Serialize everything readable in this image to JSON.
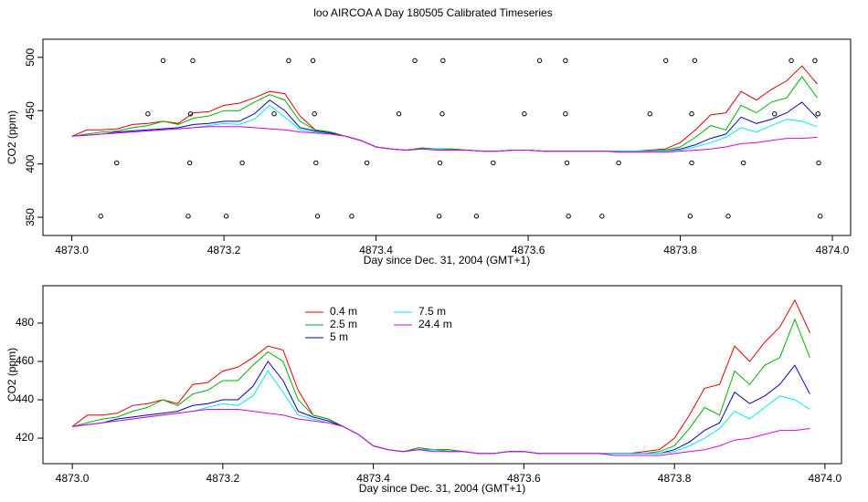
{
  "title": "loo AIRCOA A  Day 180505  Calibrated Timeseries",
  "chart_data": [
    {
      "type": "line",
      "xlabel": "Day since Dec. 31, 2004 (GMT+1)",
      "ylabel": "CO2 (ppm)",
      "xlim": [
        4872.962,
        4874.024
      ],
      "ylim": [
        332.9,
        517
      ],
      "xticks": [
        {
          "value": 4873,
          "label": "4873.0"
        },
        4873.2,
        4873.4,
        4873.6,
        4873.8,
        {
          "value": 4874,
          "label": "4874.0"
        }
      ],
      "yticks": [
        350,
        400,
        450,
        500
      ],
      "x": [
        4873.0,
        4873.02,
        4873.04,
        4873.06,
        4873.08,
        4873.1,
        4873.12,
        4873.14,
        4873.16,
        4873.18,
        4873.2,
        4873.22,
        4873.24,
        4873.26,
        4873.28,
        4873.3,
        4873.32,
        4873.34,
        4873.36,
        4873.38,
        4873.4,
        4873.42,
        4873.44,
        4873.46,
        4873.48,
        4873.5,
        4873.52,
        4873.54,
        4873.56,
        4873.58,
        4873.6,
        4873.62,
        4873.64,
        4873.66,
        4873.68,
        4873.7,
        4873.72,
        4873.74,
        4873.76,
        4873.78,
        4873.8,
        4873.82,
        4873.84,
        4873.86,
        4873.88,
        4873.9,
        4873.92,
        4873.94,
        4873.96,
        4873.98
      ],
      "series": [
        {
          "name": "0.4 m",
          "color": "#e00000",
          "values": [
            426,
            432,
            432,
            433,
            437,
            438,
            440,
            438,
            448,
            449,
            455,
            457,
            462,
            468,
            466,
            445,
            432,
            430,
            426,
            422,
            416,
            414,
            413,
            415,
            414,
            414,
            413,
            412,
            412,
            413,
            413,
            412,
            412,
            412,
            412,
            412,
            412,
            412,
            413,
            414,
            420,
            432,
            446,
            448,
            468,
            460,
            470,
            478,
            492,
            475
          ]
        },
        {
          "name": "2.5 m",
          "color": "#00b000",
          "values": [
            426,
            428,
            430,
            431,
            434,
            436,
            440,
            437,
            443,
            445,
            450,
            450,
            458,
            465,
            460,
            440,
            432,
            430,
            426,
            422,
            416,
            414,
            413,
            415,
            414,
            414,
            413,
            412,
            412,
            413,
            413,
            412,
            412,
            412,
            412,
            412,
            412,
            412,
            412,
            413,
            416,
            425,
            436,
            432,
            455,
            448,
            458,
            462,
            482,
            462
          ]
        },
        {
          "name": "5 m",
          "color": "#0000c0",
          "values": [
            426,
            427,
            428,
            430,
            431,
            432,
            433,
            434,
            437,
            438,
            440,
            440,
            447,
            460,
            450,
            434,
            431,
            429,
            426,
            422,
            416,
            414,
            413,
            414,
            414,
            413,
            413,
            412,
            412,
            413,
            413,
            412,
            412,
            412,
            412,
            412,
            412,
            412,
            412,
            412,
            414,
            418,
            424,
            428,
            444,
            438,
            442,
            448,
            458,
            443
          ]
        },
        {
          "name": "7.5 m",
          "color": "#00e8e8",
          "values": [
            426,
            427,
            428,
            429,
            430,
            431,
            432,
            433,
            434,
            436,
            438,
            437,
            442,
            455,
            444,
            432,
            430,
            428,
            426,
            422,
            416,
            414,
            413,
            414,
            414,
            413,
            413,
            412,
            412,
            413,
            413,
            412,
            412,
            412,
            412,
            412,
            412,
            412,
            412,
            412,
            413,
            416,
            420,
            425,
            434,
            430,
            436,
            442,
            440,
            435
          ]
        },
        {
          "name": "24.4 m",
          "color": "#e000e0",
          "values": [
            426,
            427,
            428,
            429,
            430,
            431,
            432,
            433,
            434,
            435,
            435,
            435,
            434,
            433,
            432,
            430,
            429,
            428,
            426,
            422,
            416,
            414,
            413,
            414,
            413,
            413,
            413,
            412,
            412,
            413,
            413,
            412,
            412,
            412,
            412,
            412,
            411,
            411,
            411,
            411,
            412,
            413,
            414,
            416,
            419,
            420,
            422,
            424,
            424,
            425
          ]
        }
      ],
      "points": {
        "color": "#000000",
        "x": [
          4873.12,
          4873.159,
          4873.285,
          4873.317,
          4873.451,
          4873.488,
          4873.615,
          4873.649,
          4873.781,
          4873.819,
          4873.946,
          4873.977,
          4873.1,
          4873.156,
          4873.266,
          4873.319,
          4873.43,
          4873.487,
          4873.595,
          4873.649,
          4873.76,
          4873.815,
          4873.924,
          4873.981,
          4873.059,
          4873.155,
          4873.224,
          4873.321,
          4873.388,
          4873.484,
          4873.554,
          4873.651,
          4873.719,
          4873.815,
          4873.883,
          4873.982,
          4873.038,
          4873.153,
          4873.203,
          4873.323,
          4873.368,
          4873.483,
          4873.532,
          4873.653,
          4873.697,
          4873.813,
          4873.863,
          4873.984
        ],
        "y": [
          497,
          497,
          497,
          497,
          497,
          497,
          497,
          497,
          497,
          497,
          497,
          497,
          447,
          447,
          447,
          447,
          447,
          447,
          447,
          447,
          447,
          447,
          447,
          447,
          401,
          401,
          401,
          401,
          401,
          401,
          401,
          401,
          401,
          401,
          401,
          401,
          351,
          351,
          351,
          351,
          351,
          351,
          351,
          351,
          351,
          351,
          351,
          351
        ]
      }
    },
    {
      "type": "line",
      "xlabel": "Day since Dec. 31, 2004 (GMT+1)",
      "ylabel": "CO2 (ppm)",
      "xlim": [
        4872.961,
        4874.022
      ],
      "ylim": [
        406.7,
        499.5
      ],
      "xticks": [
        {
          "value": 4873,
          "label": "4873.0"
        },
        4873.2,
        4873.4,
        4873.6,
        4873.8,
        {
          "value": 4874,
          "label": "4874.0"
        }
      ],
      "yticks": [
        420,
        440,
        460,
        480
      ],
      "legend": "top-center",
      "x": [
        4873.0,
        4873.02,
        4873.04,
        4873.06,
        4873.08,
        4873.1,
        4873.12,
        4873.14,
        4873.16,
        4873.18,
        4873.2,
        4873.22,
        4873.24,
        4873.26,
        4873.28,
        4873.3,
        4873.32,
        4873.34,
        4873.36,
        4873.38,
        4873.4,
        4873.42,
        4873.44,
        4873.46,
        4873.48,
        4873.5,
        4873.52,
        4873.54,
        4873.56,
        4873.58,
        4873.6,
        4873.62,
        4873.64,
        4873.66,
        4873.68,
        4873.7,
        4873.72,
        4873.74,
        4873.76,
        4873.78,
        4873.8,
        4873.82,
        4873.84,
        4873.86,
        4873.88,
        4873.9,
        4873.92,
        4873.94,
        4873.96,
        4873.98
      ],
      "series": [
        {
          "name": "0.4 m",
          "color": "#e00000",
          "values": [
            426,
            432,
            432,
            433,
            437,
            438,
            440,
            438,
            448,
            449,
            455,
            457,
            462,
            468,
            466,
            445,
            432,
            430,
            426,
            422,
            416,
            414,
            413,
            415,
            414,
            414,
            413,
            412,
            412,
            413,
            413,
            412,
            412,
            412,
            412,
            412,
            412,
            412,
            413,
            414,
            420,
            432,
            446,
            448,
            468,
            460,
            470,
            478,
            492,
            475
          ]
        },
        {
          "name": "2.5 m",
          "color": "#00b000",
          "values": [
            426,
            428,
            430,
            431,
            434,
            436,
            440,
            437,
            443,
            445,
            450,
            450,
            458,
            465,
            460,
            440,
            432,
            430,
            426,
            422,
            416,
            414,
            413,
            415,
            414,
            414,
            413,
            412,
            412,
            413,
            413,
            412,
            412,
            412,
            412,
            412,
            412,
            412,
            412,
            413,
            416,
            425,
            436,
            432,
            455,
            448,
            458,
            462,
            482,
            462
          ]
        },
        {
          "name": "5 m",
          "color": "#0000c0",
          "values": [
            426,
            427,
            428,
            430,
            431,
            432,
            433,
            434,
            437,
            438,
            440,
            440,
            447,
            460,
            450,
            434,
            431,
            429,
            426,
            422,
            416,
            414,
            413,
            414,
            414,
            413,
            413,
            412,
            412,
            413,
            413,
            412,
            412,
            412,
            412,
            412,
            412,
            412,
            412,
            412,
            414,
            418,
            424,
            428,
            444,
            438,
            442,
            448,
            458,
            443
          ]
        },
        {
          "name": "7.5 m",
          "color": "#00e8e8",
          "values": [
            426,
            427,
            428,
            429,
            430,
            431,
            432,
            433,
            434,
            436,
            438,
            437,
            442,
            455,
            444,
            432,
            430,
            428,
            426,
            422,
            416,
            414,
            413,
            414,
            414,
            413,
            413,
            412,
            412,
            413,
            413,
            412,
            412,
            412,
            412,
            412,
            412,
            412,
            412,
            412,
            413,
            416,
            420,
            425,
            434,
            430,
            436,
            442,
            440,
            435
          ]
        },
        {
          "name": "24.4 m",
          "color": "#e000e0",
          "values": [
            426,
            427,
            428,
            429,
            430,
            431,
            432,
            433,
            434,
            435,
            435,
            435,
            434,
            433,
            432,
            430,
            429,
            428,
            426,
            422,
            416,
            414,
            413,
            414,
            413,
            413,
            413,
            412,
            412,
            413,
            413,
            412,
            412,
            412,
            412,
            412,
            411,
            411,
            411,
            411,
            412,
            413,
            414,
            416,
            419,
            420,
            422,
            424,
            424,
            425
          ]
        }
      ]
    }
  ]
}
